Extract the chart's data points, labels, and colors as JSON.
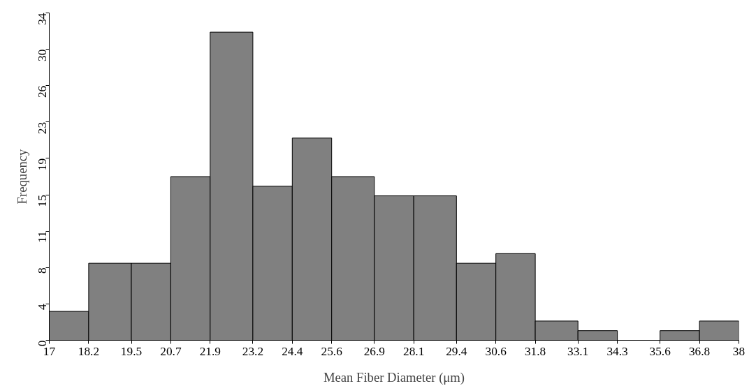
{
  "chart_data": {
    "type": "histogram",
    "xlabel": "Mean Fiber Diameter (μm)",
    "ylabel": "Frequency",
    "color": "#808080",
    "bins": [
      17,
      18.2,
      19.5,
      20.7,
      21.9,
      23.2,
      24.4,
      25.6,
      26.9,
      28.1,
      29.4,
      30.6,
      31.8,
      33.1,
      34.3,
      35.6,
      36.8,
      38
    ],
    "values": [
      3,
      8,
      8,
      17,
      32,
      16,
      21,
      17,
      15,
      15,
      8,
      9,
      2,
      1,
      0,
      1,
      2
    ],
    "xlim": [
      17,
      38
    ],
    "xticks": [
      17,
      18.2,
      19.5,
      20.7,
      21.9,
      23.2,
      24.4,
      25.6,
      26.9,
      28.1,
      29.4,
      30.6,
      31.8,
      33.1,
      34.3,
      35.6,
      36.8,
      38
    ],
    "ylim": [
      0,
      34
    ],
    "yticks": [
      0,
      {
        "value": 3.7778,
        "label": "4"
      },
      {
        "value": 7.5556,
        "label": "8"
      },
      {
        "value": 11.3333,
        "label": "11"
      },
      {
        "value": 15.1111,
        "label": "15"
      },
      {
        "value": 18.8889,
        "label": "19"
      },
      {
        "value": 22.6667,
        "label": "23"
      },
      {
        "value": 26.4444,
        "label": "26"
      },
      {
        "value": 30.2222,
        "label": "30"
      },
      34
    ],
    "grid": false
  }
}
